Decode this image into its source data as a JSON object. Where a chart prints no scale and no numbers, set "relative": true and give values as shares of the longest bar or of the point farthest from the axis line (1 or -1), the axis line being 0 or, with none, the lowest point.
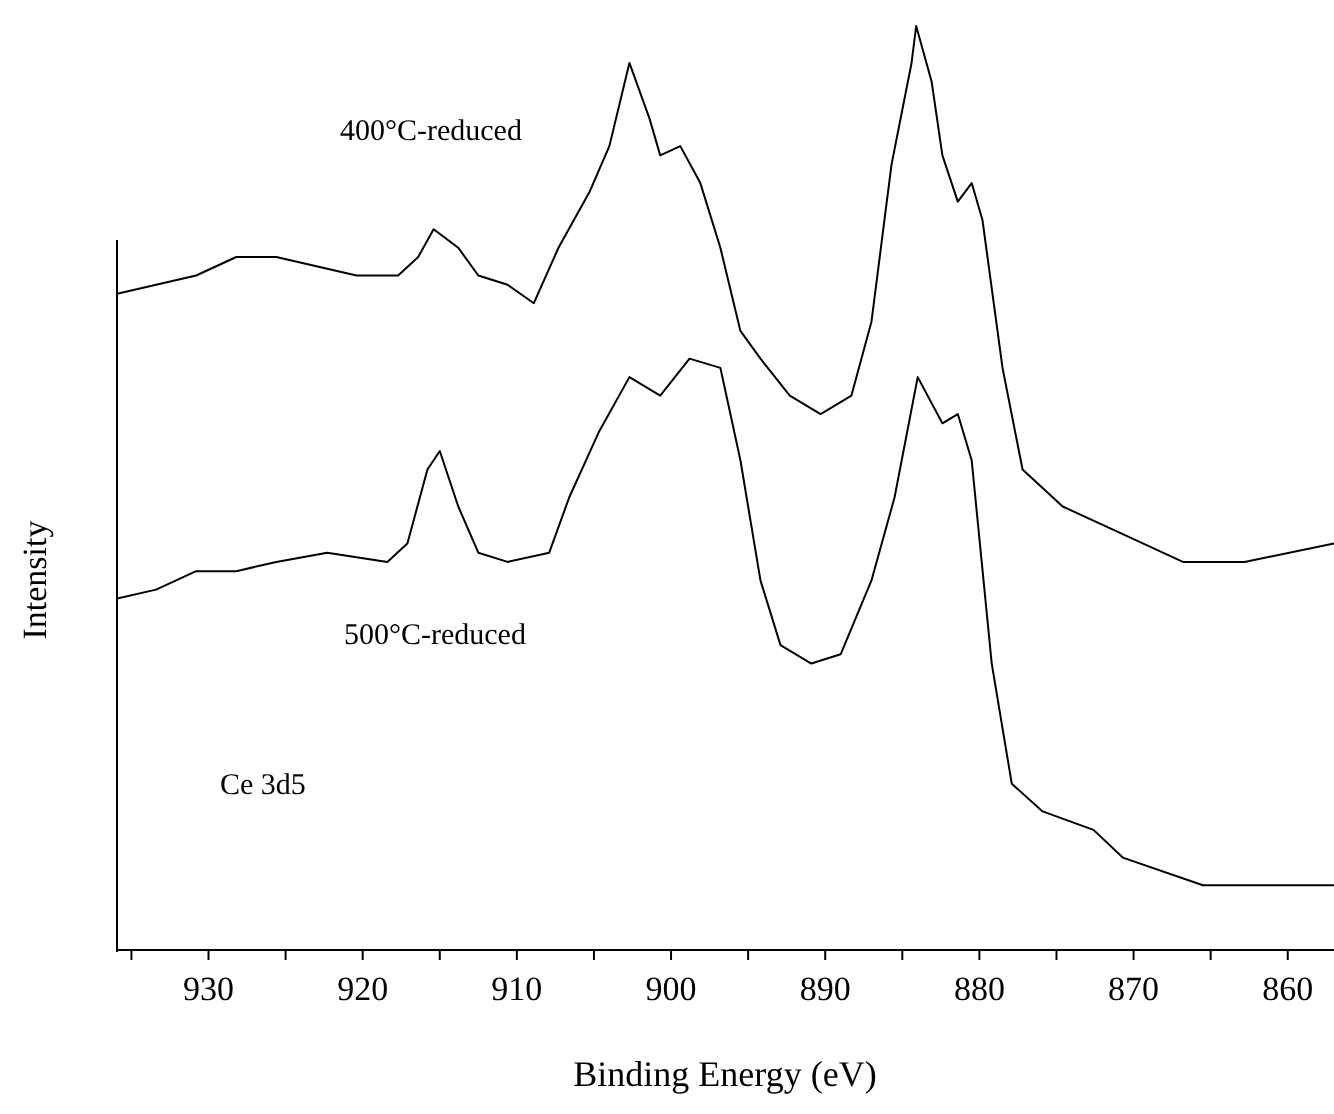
{
  "chart_data": {
    "type": "line",
    "relative": true,
    "xlabel": "Binding Energy (eV)",
    "ylabel": "Intensity",
    "annotations": [
      "Ce 3d5"
    ],
    "legend": false,
    "grid": false,
    "marker": "none",
    "line_style": "solid",
    "tick_labels": "x",
    "xlim": [
      936,
      857
    ],
    "xticks": [
      {
        "value": 935,
        "label": null
      },
      930,
      {
        "value": 925,
        "label": null
      },
      920,
      {
        "value": 915,
        "label": null
      },
      910,
      {
        "value": 905,
        "label": null
      },
      900,
      {
        "value": 895,
        "label": null
      },
      890,
      {
        "value": 885,
        "label": null
      },
      880,
      {
        "value": 875,
        "label": null
      },
      870,
      {
        "value": 865,
        "label": null
      },
      860
    ],
    "series": [
      {
        "name": "400°C-reduced",
        "color": "#000000",
        "x": [
          936.0,
          933.4,
          930.8,
          928.2,
          925.6,
          923.0,
          920.4,
          917.7,
          916.4,
          915.4,
          913.8,
          912.5,
          910.6,
          908.9,
          907.3,
          905.3,
          904.0,
          902.7,
          901.4,
          900.7,
          899.4,
          898.1,
          896.8,
          895.5,
          894.2,
          892.3,
          890.3,
          888.3,
          887.0,
          885.7,
          884.4,
          884.1,
          883.1,
          882.4,
          881.4,
          880.5,
          879.8,
          878.5,
          877.2,
          874.6,
          870.7,
          866.8,
          862.8,
          857.0
        ],
        "values": [
          0.71,
          0.72,
          0.73,
          0.75,
          0.75,
          0.74,
          0.73,
          0.73,
          0.75,
          0.78,
          0.76,
          0.73,
          0.72,
          0.7,
          0.76,
          0.82,
          0.87,
          0.96,
          0.9,
          0.86,
          0.87,
          0.83,
          0.76,
          0.67,
          0.64,
          0.6,
          0.58,
          0.6,
          0.68,
          0.85,
          0.96,
          1.0,
          0.94,
          0.86,
          0.81,
          0.83,
          0.79,
          0.63,
          0.52,
          0.48,
          0.45,
          0.42,
          0.42,
          0.44
        ]
      },
      {
        "name": "500°C-reduced",
        "color": "#000000",
        "x": [
          936.0,
          933.4,
          930.8,
          928.2,
          925.6,
          922.3,
          918.4,
          917.1,
          915.8,
          915.0,
          913.8,
          912.5,
          910.6,
          907.9,
          906.6,
          904.7,
          902.7,
          900.7,
          898.8,
          896.8,
          895.5,
          894.2,
          892.9,
          890.9,
          889.0,
          887.0,
          885.5,
          884.0,
          882.4,
          881.4,
          880.5,
          879.2,
          877.9,
          875.9,
          872.6,
          870.7,
          865.5,
          857.0
        ],
        "values": [
          0.38,
          0.39,
          0.41,
          0.41,
          0.42,
          0.43,
          0.42,
          0.44,
          0.52,
          0.54,
          0.48,
          0.43,
          0.42,
          0.43,
          0.49,
          0.56,
          0.62,
          0.6,
          0.64,
          0.63,
          0.53,
          0.4,
          0.33,
          0.31,
          0.32,
          0.4,
          0.49,
          0.62,
          0.57,
          0.58,
          0.53,
          0.31,
          0.18,
          0.15,
          0.13,
          0.1,
          0.07,
          0.07
        ]
      }
    ]
  }
}
